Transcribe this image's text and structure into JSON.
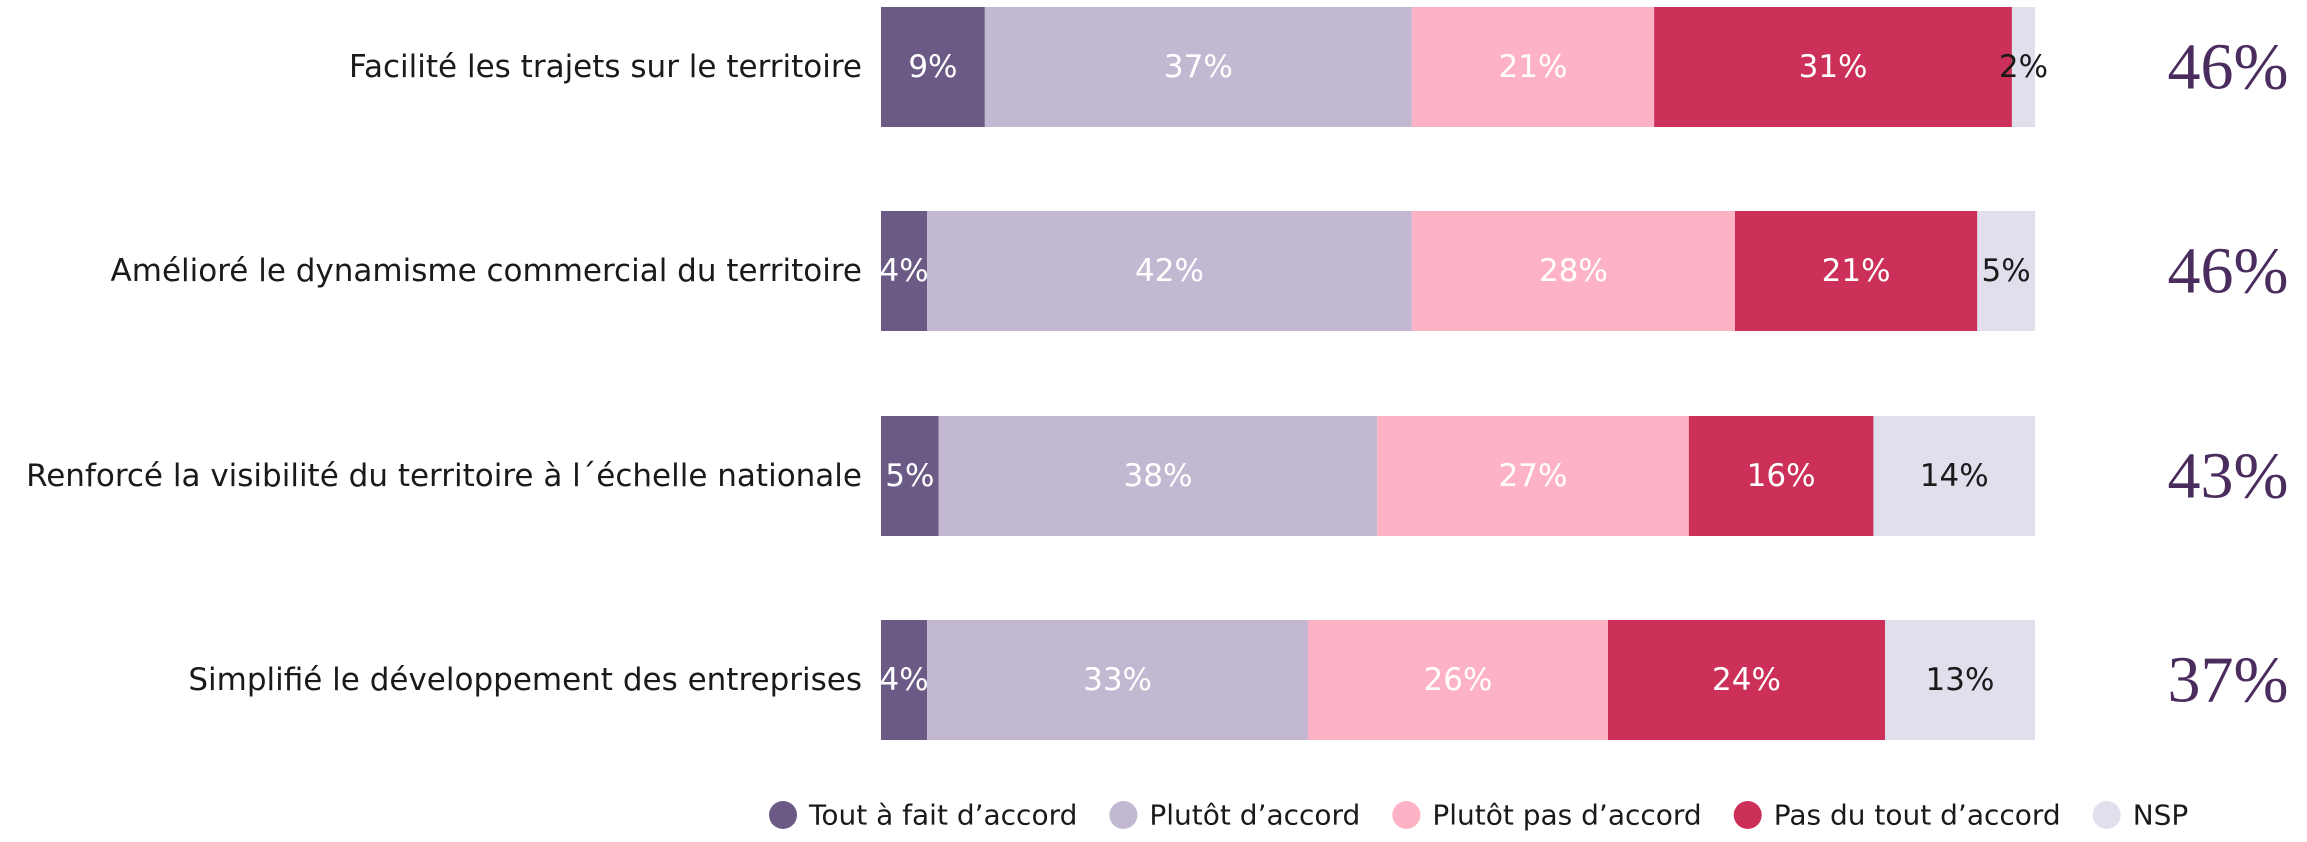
{
  "chart_data": {
    "type": "stacked-bar-horizontal",
    "categories": [
      "Facilité les trajets sur le territoire",
      "Amélioré le dynamisme commercial du territoire",
      "Renforcé la visibilité du territoire à l´échelle nationale",
      "Simplifié le développement des entreprises"
    ],
    "series": [
      {
        "name": "Tout à fait d’accord",
        "color": "#6b5a86",
        "text_color": "#ffffff",
        "values": [
          9,
          4,
          5,
          4
        ],
        "value_labels": [
          "9%",
          "4%",
          "5%",
          "4%"
        ]
      },
      {
        "name": "Plutôt d’accord",
        "color": "#c2b8d1",
        "text_color": "#ffffff",
        "values": [
          37,
          42,
          38,
          33
        ],
        "value_labels": [
          "37%",
          "42%",
          "38%",
          "33%"
        ]
      },
      {
        "name": "Plutôt pas d’accord",
        "color": "#fdb3c5",
        "text_color": "#ffffff",
        "values": [
          21,
          28,
          27,
          26
        ],
        "value_labels": [
          "21%",
          "28%",
          "27%",
          "26%"
        ]
      },
      {
        "name": "Pas du tout d’accord",
        "color": "#cc2f57",
        "text_color": "#ffffff",
        "values": [
          31,
          21,
          16,
          24
        ],
        "value_labels": [
          "31%",
          "21%",
          "16%",
          "24%"
        ]
      },
      {
        "name": "NSP",
        "color": "#dfe0ec",
        "text_color": "#1a1a1a",
        "values": [
          2,
          5,
          14,
          13
        ],
        "value_labels": [
          "2%",
          "5%",
          "14%",
          "13%"
        ]
      }
    ],
    "totals": {
      "color": "#4a2d5e",
      "values": [
        46,
        46,
        43,
        37
      ],
      "value_labels": [
        "46%",
        "46%",
        "43%",
        "37%"
      ]
    }
  }
}
